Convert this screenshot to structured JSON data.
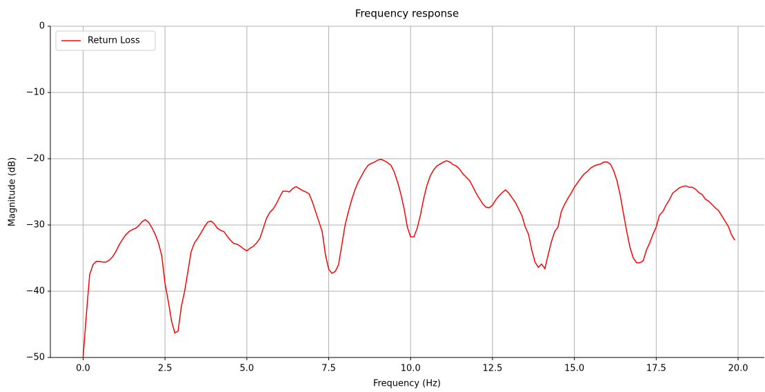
{
  "chart_data": {
    "type": "line",
    "title": "Frequency response",
    "x_label": "Frequency (Hz)",
    "y_label": "Magnitude (dB)",
    "xlim": [
      -1.0,
      20.8
    ],
    "ylim": [
      -50,
      0
    ],
    "xticks": [
      {
        "value": 0,
        "label": "0.0"
      },
      {
        "value": 2.5,
        "label": "2.5"
      },
      {
        "value": 5,
        "label": "5.0"
      },
      {
        "value": 7.5,
        "label": "7.5"
      },
      {
        "value": 10,
        "label": "10.0"
      },
      {
        "value": 12.5,
        "label": "12.5"
      },
      {
        "value": 15,
        "label": "15.0"
      },
      {
        "value": 17.5,
        "label": "17.5"
      },
      {
        "value": 20,
        "label": "20.0"
      }
    ],
    "yticks": [
      {
        "value": -50,
        "label": "−50"
      },
      {
        "value": -40,
        "label": "−40"
      },
      {
        "value": -30,
        "label": "−30"
      },
      {
        "value": -20,
        "label": "−20"
      },
      {
        "value": -10,
        "label": "−10"
      },
      0
    ],
    "grid": true,
    "legend": "upper left",
    "x": [
      0,
      0.1,
      0.2,
      0.3,
      0.4,
      0.5,
      0.6,
      0.7,
      0.8,
      0.9,
      1,
      1.1,
      1.2,
      1.3,
      1.4,
      1.5,
      1.6,
      1.7,
      1.8,
      1.9,
      2,
      2.1,
      2.2,
      2.3,
      2.4,
      2.5,
      2.6,
      2.7,
      2.8,
      2.9,
      3,
      3.1,
      3.2,
      3.3,
      3.4,
      3.5,
      3.6,
      3.7,
      3.8,
      3.9,
      4,
      4.1,
      4.2,
      4.3,
      4.4,
      4.5,
      4.6,
      4.7,
      4.8,
      4.9,
      5,
      5.1,
      5.2,
      5.3,
      5.4,
      5.5,
      5.6,
      5.7,
      5.8,
      5.9,
      6,
      6.1,
      6.2,
      6.3,
      6.4,
      6.5,
      6.6,
      6.7,
      6.8,
      6.9,
      7,
      7.1,
      7.2,
      7.3,
      7.4,
      7.5,
      7.6,
      7.7,
      7.8,
      7.9,
      8,
      8.1,
      8.2,
      8.3,
      8.4,
      8.5,
      8.6,
      8.7,
      8.8,
      8.9,
      9,
      9.1,
      9.2,
      9.3,
      9.4,
      9.5,
      9.6,
      9.7,
      9.8,
      9.9,
      10,
      10.1,
      10.2,
      10.3,
      10.4,
      10.5,
      10.6,
      10.7,
      10.8,
      10.9,
      11,
      11.1,
      11.2,
      11.3,
      11.4,
      11.5,
      11.6,
      11.7,
      11.8,
      11.9,
      12,
      12.1,
      12.2,
      12.3,
      12.4,
      12.5,
      12.6,
      12.7,
      12.8,
      12.9,
      13,
      13.1,
      13.2,
      13.3,
      13.4,
      13.5,
      13.6,
      13.7,
      13.8,
      13.9,
      14,
      14.1,
      14.2,
      14.3,
      14.4,
      14.5,
      14.6,
      14.7,
      14.8,
      14.9,
      15,
      15.1,
      15.2,
      15.3,
      15.4,
      15.5,
      15.6,
      15.7,
      15.8,
      15.9,
      16,
      16.1,
      16.2,
      16.3,
      16.4,
      16.5,
      16.6,
      16.7,
      16.8,
      16.9,
      17,
      17.1,
      17.2,
      17.3,
      17.4,
      17.5,
      17.6,
      17.7,
      17.8,
      17.9,
      18,
      18.1,
      18.2,
      18.3,
      18.4,
      18.5,
      18.6,
      18.7,
      18.8,
      18.9,
      19,
      19.1,
      19.2,
      19.3,
      19.4,
      19.5,
      19.6,
      19.7,
      19.8,
      19.9
    ],
    "series": [
      {
        "name": "Return Loss",
        "color": "#ff0000",
        "values": [
          -50,
          -43.5,
          -37.5,
          -36,
          -35.5,
          -35.5,
          -35.6,
          -35.6,
          -35.3,
          -34.8,
          -34,
          -33,
          -32.2,
          -31.5,
          -31,
          -30.7,
          -30.5,
          -30.1,
          -29.5,
          -29.2,
          -29.6,
          -30.4,
          -31.4,
          -32.7,
          -34.6,
          -38.8,
          -41.5,
          -44.5,
          -46.3,
          -46,
          -42.3,
          -40,
          -37,
          -34,
          -32.7,
          -32,
          -31.2,
          -30.3,
          -29.6,
          -29.4,
          -29.8,
          -30.5,
          -30.8,
          -31,
          -31.7,
          -32.3,
          -32.8,
          -32.9,
          -33.2,
          -33.6,
          -33.9,
          -33.5,
          -33.2,
          -32.7,
          -32,
          -30.5,
          -29,
          -28.1,
          -27.6,
          -26.8,
          -25.8,
          -24.9,
          -24.9,
          -25,
          -24.5,
          -24.2,
          -24.5,
          -24.8,
          -25,
          -25.3,
          -26.5,
          -28,
          -29.5,
          -31,
          -34.5,
          -36.7,
          -37.3,
          -37,
          -36,
          -33,
          -30,
          -28,
          -26.2,
          -24.7,
          -23.5,
          -22.6,
          -21.7,
          -21,
          -20.7,
          -20.5,
          -20.2,
          -20.1,
          -20.3,
          -20.6,
          -21,
          -22,
          -23.5,
          -25.3,
          -27.5,
          -30.3,
          -31.8,
          -31.8,
          -30.5,
          -28.5,
          -26,
          -24,
          -22.6,
          -21.7,
          -21.1,
          -20.8,
          -20.5,
          -20.3,
          -20.5,
          -20.9,
          -21.1,
          -21.6,
          -22.3,
          -22.8,
          -23.3,
          -24.2,
          -25.2,
          -26,
          -26.8,
          -27.3,
          -27.4,
          -27,
          -26.2,
          -25.6,
          -25.1,
          -24.7,
          -25.2,
          -25.9,
          -26.6,
          -27.6,
          -28.6,
          -30.3,
          -31.4,
          -33.8,
          -35.6,
          -36.4,
          -35.9,
          -36.6,
          -34.5,
          -32.5,
          -31,
          -30.3,
          -28,
          -26.9,
          -26,
          -25.2,
          -24.3,
          -23.6,
          -22.9,
          -22.3,
          -21.9,
          -21.4,
          -21.1,
          -20.9,
          -20.8,
          -20.5,
          -20.5,
          -20.8,
          -21.8,
          -23.3,
          -25.5,
          -28.3,
          -31,
          -33.4,
          -35,
          -35.7,
          -35.7,
          -35.4,
          -33.8,
          -32.7,
          -31.4,
          -30.3,
          -28.5,
          -28,
          -27,
          -26.2,
          -25.2,
          -24.8,
          -24.4,
          -24.2,
          -24.1,
          -24.3,
          -24.3,
          -24.6,
          -25.1,
          -25.4,
          -26.1,
          -26.4,
          -26.9,
          -27.4,
          -27.8,
          -28.6,
          -29.4,
          -30.2,
          -31.5,
          -32.3
        ]
      }
    ]
  }
}
